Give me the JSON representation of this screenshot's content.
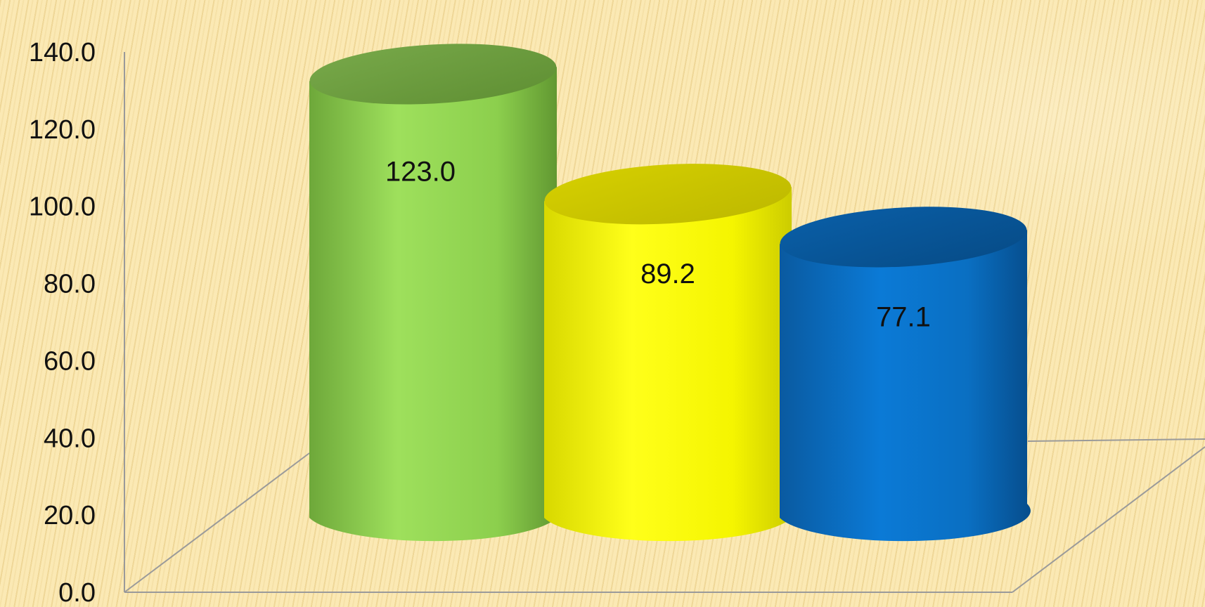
{
  "chart_data": {
    "type": "bar",
    "style": "3d-cylinder",
    "categories": [
      "",
      "",
      ""
    ],
    "values": [
      123.0,
      89.2,
      77.1
    ],
    "data_labels": [
      "123.0",
      "89.2",
      "77.1"
    ],
    "bar_colors": [
      "#8fd14f",
      "#f2f200",
      "#0a6fc2"
    ],
    "title": "",
    "xlabel": "",
    "ylabel": "",
    "ylim": [
      0,
      140
    ],
    "yticks": [
      "0.0",
      "20.0",
      "40.0",
      "60.0",
      "80.0",
      "100.0",
      "120.0",
      "140.0"
    ],
    "grid": false,
    "legend": "none"
  }
}
